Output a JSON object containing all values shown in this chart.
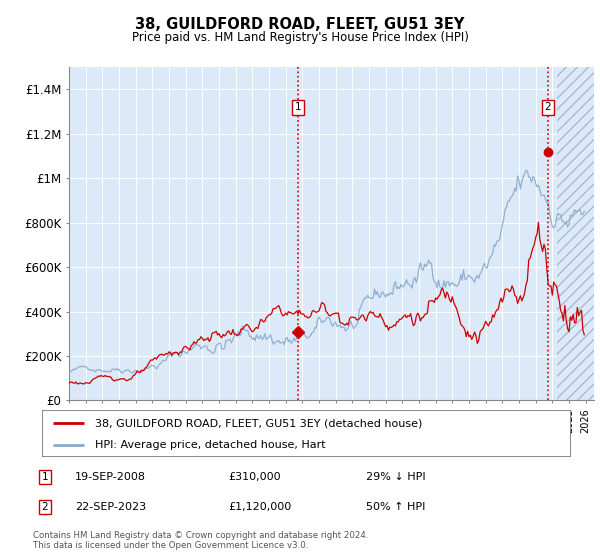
{
  "title": "38, GUILDFORD ROAD, FLEET, GU51 3EY",
  "subtitle": "Price paid vs. HM Land Registry's House Price Index (HPI)",
  "legend_line1": "38, GUILDFORD ROAD, FLEET, GU51 3EY (detached house)",
  "legend_line2": "HPI: Average price, detached house, Hart",
  "transaction1_date": "19-SEP-2008",
  "transaction1_price": "£310,000",
  "transaction1_label": "29% ↓ HPI",
  "transaction2_date": "22-SEP-2023",
  "transaction2_price": "£1,120,000",
  "transaction2_label": "50% ↑ HPI",
  "annotation1_num": "1",
  "annotation2_num": "2",
  "xlim_min": 1995.0,
  "xlim_max": 2026.5,
  "ylim_min": 0,
  "ylim_max": 1500000,
  "yticks": [
    0,
    200000,
    400000,
    600000,
    800000,
    1000000,
    1200000,
    1400000
  ],
  "ytick_labels": [
    "£0",
    "£200K",
    "£400K",
    "£600K",
    "£800K",
    "£1M",
    "£1.2M",
    "£1.4M"
  ],
  "bg_color": "#dce9f8",
  "line_color_red": "#cc0000",
  "line_color_blue": "#88aacc",
  "vline_color": "#cc0000",
  "note_text": "Contains HM Land Registry data © Crown copyright and database right 2024.\nThis data is licensed under the Open Government Licence v3.0.",
  "marker1_x": 2008.72,
  "marker1_y": 310000,
  "marker2_x": 2023.72,
  "marker2_y": 1120000,
  "hatch_start": 2024.3
}
